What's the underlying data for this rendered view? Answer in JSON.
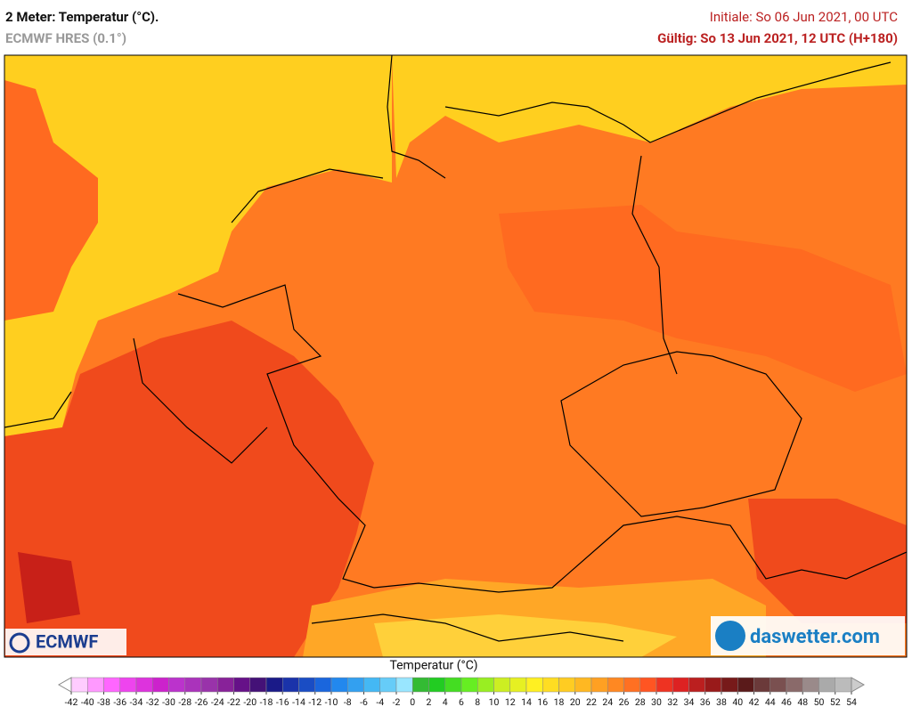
{
  "header": {
    "title": "2 Meter: Temperatur (°C).",
    "subtitle": "ECMWF HRES (0.1°)",
    "init": "Initiale: So 06 Jun 2021, 00 UTC",
    "valid": "Gültig: So 13 Jun 2021, 12 UTC (H+180)"
  },
  "logos": {
    "left": "ECMWF",
    "right": "daswetter.com"
  },
  "colorbar": {
    "label": "Temperatur (°C)",
    "ticks": [
      -42,
      -40,
      -38,
      -36,
      -34,
      -32,
      -30,
      -28,
      -26,
      -24,
      -22,
      -20,
      -18,
      -16,
      -14,
      -12,
      -10,
      -8,
      -6,
      -4,
      -2,
      0,
      2,
      4,
      6,
      8,
      10,
      12,
      14,
      16,
      18,
      20,
      22,
      24,
      26,
      28,
      30,
      32,
      34,
      36,
      38,
      40,
      42,
      44,
      46,
      48,
      50,
      52,
      54
    ],
    "colors": [
      "#ffccff",
      "#ff99ff",
      "#ff66ff",
      "#ee44ee",
      "#dd33dd",
      "#cc22cc",
      "#bb33cc",
      "#aa33bb",
      "#9933aa",
      "#882299",
      "#661188",
      "#441177",
      "#1a1a88",
      "#1a33aa",
      "#1a4dc4",
      "#1a66dd",
      "#2288ee",
      "#33a0f0",
      "#44b8f4",
      "#66ccf8",
      "#99e6ff",
      "#33bb33",
      "#22cc22",
      "#44dd22",
      "#66ee22",
      "#99ee22",
      "#ccee22",
      "#e6f022",
      "#fff022",
      "#ffdd22",
      "#ffcc22",
      "#ffb822",
      "#ffa022",
      "#ff8822",
      "#ff7022",
      "#ff5522",
      "#ee3322",
      "#dd2222",
      "#bb1f1f",
      "#991a1a",
      "#771a1a",
      "#5a1a1a",
      "#6b3a3a",
      "#7a5050",
      "#8a6a6a",
      "#9a8a8a",
      "#aaaaaa",
      "#bbbbbb"
    ]
  }
}
